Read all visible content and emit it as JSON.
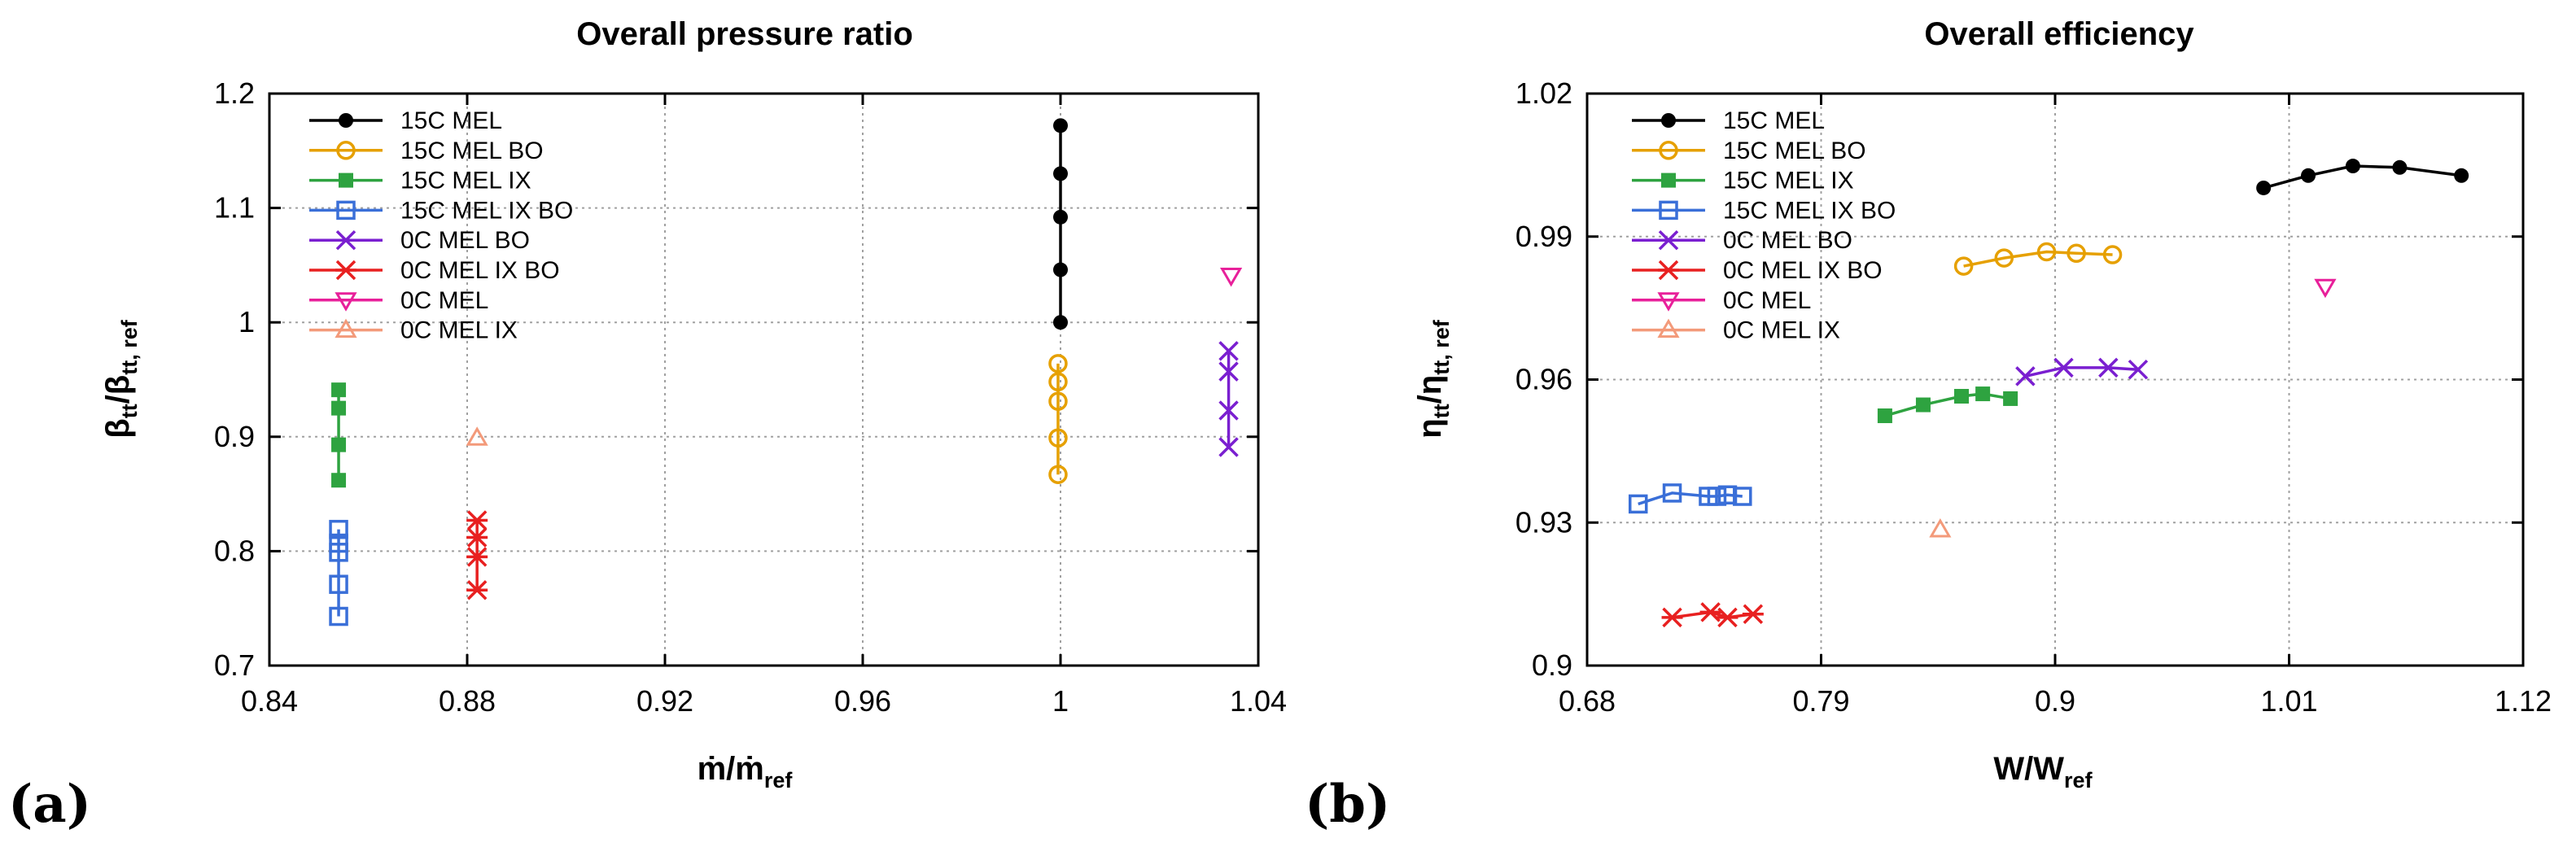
{
  "chart_data": [
    {
      "type": "line",
      "title": "Overall pressure ratio",
      "panel_label": "(a)",
      "xlabel": {
        "main": "ṁ/ṁ",
        "sub": "ref"
      },
      "ylabel": {
        "main": "β",
        "sub": "tt",
        "mid": "/β",
        "sub2": "tt, ref"
      },
      "xlim": [
        0.84,
        1.04
      ],
      "ylim": [
        0.7,
        1.2
      ],
      "xticks": [
        0.84,
        0.88,
        0.92,
        0.96,
        1.0,
        1.04
      ],
      "xtick_labels": [
        "0.84",
        "0.88",
        "0.92",
        "0.96",
        "1",
        "1.04"
      ],
      "yticks": [
        0.7,
        0.8,
        0.9,
        1.0,
        1.1,
        1.2
      ],
      "ytick_labels": [
        "0.7",
        "0.8",
        "0.9",
        "1",
        "1.1",
        "1.2"
      ],
      "grid": true,
      "legend_position": "top-left",
      "series": [
        {
          "name": "15C MEL",
          "color": "#000000",
          "marker": "filled-circle",
          "x": [
            1.0,
            1.0,
            1.0,
            1.0,
            1.0
          ],
          "y": [
            1.172,
            1.13,
            1.092,
            1.046,
            1.0
          ]
        },
        {
          "name": "15C MEL BO",
          "color": "#e6a000",
          "marker": "open-circle",
          "x": [
            0.9995,
            0.9995,
            0.9995,
            0.9995,
            0.9995
          ],
          "y": [
            0.964,
            0.948,
            0.931,
            0.899,
            0.867
          ]
        },
        {
          "name": "15C MEL IX",
          "color": "#2ea340",
          "marker": "filled-square",
          "x": [
            0.854,
            0.854,
            0.854,
            0.854
          ],
          "y": [
            0.941,
            0.925,
            0.893,
            0.862
          ]
        },
        {
          "name": "15C MEL IX BO",
          "color": "#3a6fd8",
          "marker": "open-square",
          "x": [
            0.854,
            0.854,
            0.854,
            0.854,
            0.854
          ],
          "y": [
            0.819,
            0.807,
            0.799,
            0.771,
            0.743
          ]
        },
        {
          "name": "0C MEL BO",
          "color": "#7a1fd0",
          "marker": "cross",
          "x": [
            1.034,
            1.034,
            1.034,
            1.034
          ],
          "y": [
            0.975,
            0.957,
            0.923,
            0.891
          ]
        },
        {
          "name": "0C MEL IX BO",
          "color": "#e82020",
          "marker": "star",
          "x": [
            0.882,
            0.882,
            0.882,
            0.882
          ],
          "y": [
            0.827,
            0.812,
            0.795,
            0.766
          ]
        },
        {
          "name": "0C MEL",
          "color": "#e8209a",
          "marker": "open-triangle-down",
          "x": [
            1.0345
          ],
          "y": [
            1.041
          ]
        },
        {
          "name": "0C MEL IX",
          "color": "#f39a7a",
          "marker": "open-triangle-up",
          "x": [
            0.882
          ],
          "y": [
            0.899
          ]
        }
      ]
    },
    {
      "type": "line",
      "title": "Overall efficiency",
      "panel_label": "(b)",
      "xlabel": {
        "main": "W/W",
        "sub": "ref"
      },
      "ylabel": {
        "main": "η",
        "sub": "tt",
        "mid": "/η",
        "sub2": "tt, ref"
      },
      "xlim": [
        0.68,
        1.12
      ],
      "ylim": [
        0.9,
        1.02
      ],
      "xticks": [
        0.68,
        0.79,
        0.9,
        1.01,
        1.12
      ],
      "xtick_labels": [
        "0.68",
        "0.79",
        "0.9",
        "1.01",
        "1.12"
      ],
      "yticks": [
        0.9,
        0.93,
        0.96,
        0.99,
        1.02
      ],
      "ytick_labels": [
        "0.9",
        "0.93",
        "0.96",
        "0.99",
        "1.02"
      ],
      "grid": true,
      "legend_position": "top-left",
      "series": [
        {
          "name": "15C MEL",
          "color": "#000000",
          "marker": "filled-circle",
          "x": [
            0.998,
            1.019,
            1.04,
            1.062,
            1.091
          ],
          "y": [
            1.0002,
            1.0028,
            1.0048,
            1.0045,
            1.0028
          ]
        },
        {
          "name": "15C MEL BO",
          "color": "#e6a000",
          "marker": "open-circle",
          "x": [
            0.857,
            0.876,
            0.896,
            0.91,
            0.927
          ],
          "y": [
            0.9838,
            0.9855,
            0.9868,
            0.9865,
            0.9862
          ]
        },
        {
          "name": "15C MEL IX",
          "color": "#2ea340",
          "marker": "filled-square",
          "x": [
            0.82,
            0.838,
            0.856,
            0.866,
            0.879
          ],
          "y": [
            0.9524,
            0.9547,
            0.9565,
            0.957,
            0.956
          ]
        },
        {
          "name": "15C MEL IX BO",
          "color": "#3a6fd8",
          "marker": "open-square",
          "x": [
            0.704,
            0.72,
            0.737,
            0.741,
            0.746,
            0.753
          ],
          "y": [
            0.9339,
            0.9362,
            0.9355,
            0.9355,
            0.9358,
            0.9355
          ]
        },
        {
          "name": "0C MEL BO",
          "color": "#7a1fd0",
          "marker": "cross",
          "x": [
            0.886,
            0.904,
            0.925,
            0.939
          ],
          "y": [
            0.9607,
            0.9625,
            0.9625,
            0.9621
          ]
        },
        {
          "name": "0C MEL IX BO",
          "color": "#e82020",
          "marker": "star",
          "x": [
            0.72,
            0.738,
            0.746,
            0.758
          ],
          "y": [
            0.9101,
            0.9112,
            0.9101,
            0.9108
          ]
        },
        {
          "name": "0C MEL",
          "color": "#e8209a",
          "marker": "open-triangle-down",
          "x": [
            1.027
          ],
          "y": [
            0.9795
          ]
        },
        {
          "name": "0C MEL IX",
          "color": "#f39a7a",
          "marker": "open-triangle-up",
          "x": [
            0.846
          ],
          "y": [
            0.9285
          ]
        }
      ]
    }
  ]
}
